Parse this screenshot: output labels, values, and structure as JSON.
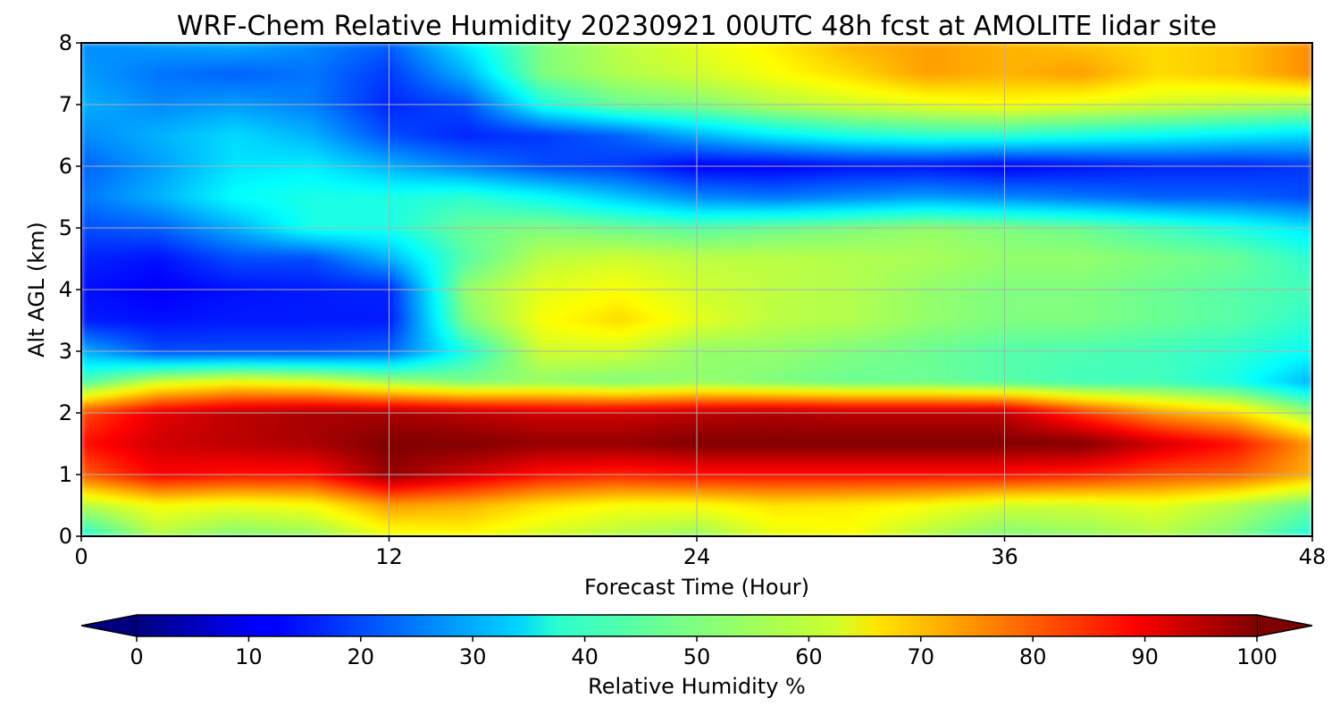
{
  "chart_data": {
    "type": "heatmap",
    "title": "WRF-Chem Relative Humidity 20230921 00UTC 48h fcst at AMOLITE lidar site",
    "xlabel": "Forecast Time (Hour)",
    "ylabel": "Alt AGL (km)",
    "xlim": [
      0,
      48
    ],
    "ylim": [
      0,
      8
    ],
    "x_ticks": [
      0,
      12,
      24,
      36,
      48
    ],
    "y_ticks": [
      0,
      1,
      2,
      3,
      4,
      5,
      6,
      7,
      8
    ],
    "grid": true,
    "x": [
      0,
      3,
      6,
      9,
      12,
      15,
      18,
      21,
      24,
      27,
      30,
      33,
      36,
      39,
      42,
      45,
      48
    ],
    "y": [
      0,
      0.5,
      1,
      1.5,
      2,
      2.5,
      3,
      3.5,
      4,
      4.5,
      5,
      5.5,
      6,
      6.5,
      7,
      7.5,
      8
    ],
    "values_rh_percent": [
      [
        40,
        55,
        50,
        52,
        60,
        62,
        58,
        55,
        52,
        60,
        62,
        55,
        50,
        52,
        55,
        50,
        40
      ],
      [
        55,
        62,
        60,
        62,
        72,
        70,
        65,
        62,
        62,
        65,
        64,
        62,
        58,
        58,
        60,
        55,
        48
      ],
      [
        78,
        88,
        86,
        86,
        98,
        92,
        86,
        84,
        86,
        86,
        86,
        86,
        86,
        84,
        80,
        78,
        70
      ],
      [
        86,
        92,
        94,
        96,
        100,
        100,
        98,
        98,
        100,
        100,
        100,
        100,
        100,
        100,
        92,
        86,
        72
      ],
      [
        80,
        90,
        94,
        96,
        96,
        94,
        92,
        92,
        94,
        95,
        94,
        94,
        94,
        82,
        72,
        66,
        52
      ],
      [
        45,
        58,
        62,
        60,
        54,
        50,
        52,
        50,
        52,
        50,
        48,
        48,
        46,
        44,
        44,
        40,
        30
      ],
      [
        30,
        20,
        20,
        20,
        22,
        40,
        58,
        58,
        52,
        52,
        50,
        48,
        46,
        45,
        44,
        42,
        38
      ],
      [
        15,
        14,
        15,
        15,
        15,
        50,
        62,
        66,
        60,
        56,
        55,
        52,
        50,
        50,
        48,
        46,
        42
      ],
      [
        14,
        12,
        14,
        15,
        16,
        52,
        60,
        62,
        58,
        56,
        55,
        52,
        50,
        50,
        48,
        46,
        44
      ],
      [
        16,
        14,
        20,
        20,
        30,
        46,
        56,
        58,
        56,
        56,
        55,
        54,
        52,
        52,
        50,
        48,
        42
      ],
      [
        20,
        22,
        30,
        40,
        40,
        48,
        50,
        48,
        46,
        48,
        50,
        52,
        50,
        48,
        44,
        40,
        35
      ],
      [
        24,
        30,
        38,
        40,
        40,
        42,
        38,
        32,
        26,
        24,
        26,
        28,
        26,
        24,
        22,
        22,
        20
      ],
      [
        22,
        28,
        35,
        36,
        30,
        25,
        20,
        18,
        12,
        12,
        14,
        14,
        12,
        14,
        16,
        16,
        18
      ],
      [
        26,
        30,
        34,
        30,
        20,
        16,
        18,
        22,
        30,
        36,
        40,
        42,
        42,
        40,
        38,
        36,
        34
      ],
      [
        30,
        26,
        28,
        25,
        16,
        20,
        40,
        48,
        50,
        55,
        58,
        60,
        62,
        60,
        58,
        56,
        54
      ],
      [
        28,
        24,
        22,
        24,
        18,
        30,
        50,
        55,
        58,
        62,
        66,
        72,
        70,
        72,
        66,
        68,
        74
      ],
      [
        26,
        28,
        30,
        26,
        22,
        36,
        50,
        56,
        60,
        64,
        70,
        72,
        70,
        68,
        66,
        68,
        74
      ]
    ],
    "colorbar": {
      "label": "Relative Humidity %",
      "min": 0,
      "max": 100,
      "ticks": [
        0,
        10,
        20,
        30,
        40,
        50,
        60,
        70,
        80,
        90,
        100
      ],
      "colormap": "jet",
      "extend": "both"
    }
  }
}
